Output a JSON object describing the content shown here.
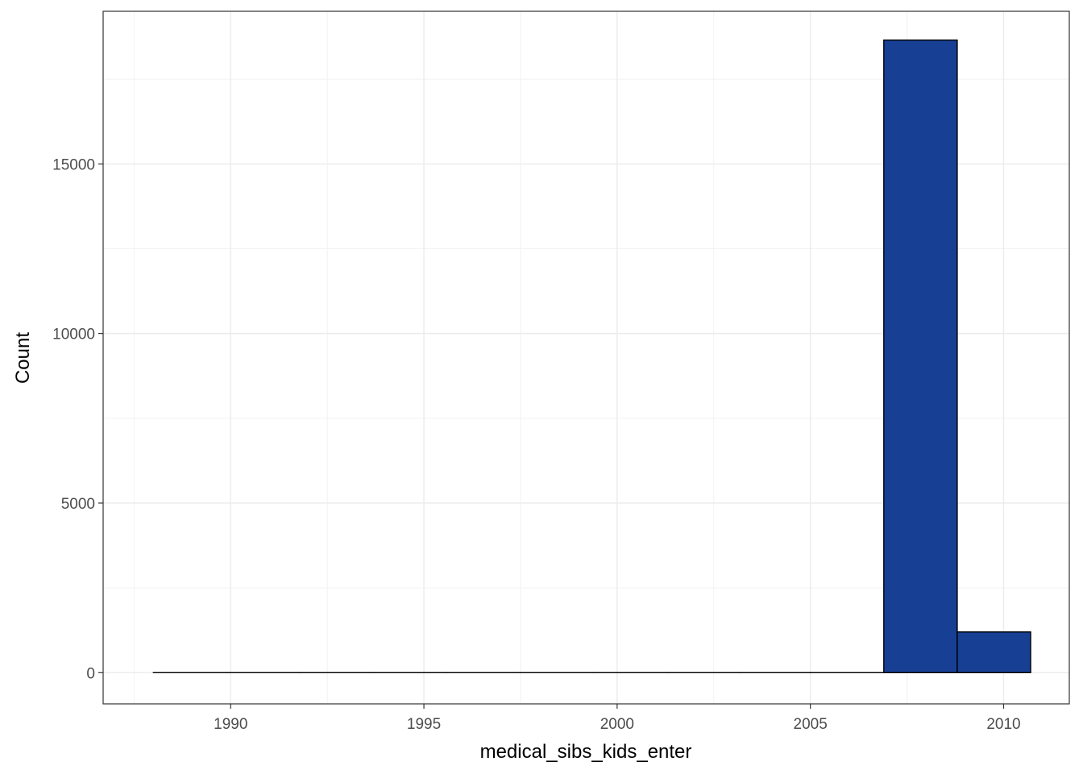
{
  "chart_data": {
    "type": "bar",
    "subtype": "histogram",
    "xlabel": "medical_sibs_kids_enter",
    "ylabel": "Count",
    "xlim": [
      1986.7,
      2011.7
    ],
    "ylim": [
      -920,
      19500
    ],
    "x_ticks": [
      1990,
      1995,
      2000,
      2005,
      2010
    ],
    "y_ticks": [
      0,
      5000,
      10000,
      15000
    ],
    "bin_width": 1.9,
    "bins": [
      {
        "x_start": 1988.0,
        "x_end": 1989.9,
        "count": 0
      },
      {
        "x_start": 1989.9,
        "x_end": 1991.8,
        "count": 0
      },
      {
        "x_start": 1991.8,
        "x_end": 1993.7,
        "count": 0
      },
      {
        "x_start": 1993.7,
        "x_end": 1995.6,
        "count": 0
      },
      {
        "x_start": 1995.6,
        "x_end": 1997.5,
        "count": 0
      },
      {
        "x_start": 1997.5,
        "x_end": 1999.4,
        "count": 0
      },
      {
        "x_start": 1999.4,
        "x_end": 2001.3,
        "count": 0
      },
      {
        "x_start": 2001.3,
        "x_end": 2003.2,
        "count": 0
      },
      {
        "x_start": 2003.2,
        "x_end": 2005.0,
        "count": 0
      },
      {
        "x_start": 2005.0,
        "x_end": 2006.9,
        "count": 0
      },
      {
        "x_start": 2006.9,
        "x_end": 2008.8,
        "count": 18650
      },
      {
        "x_start": 2008.8,
        "x_end": 2010.7,
        "count": 1200
      }
    ],
    "grid": true,
    "fill_color": "#173f94",
    "edge_color": "#000000"
  }
}
